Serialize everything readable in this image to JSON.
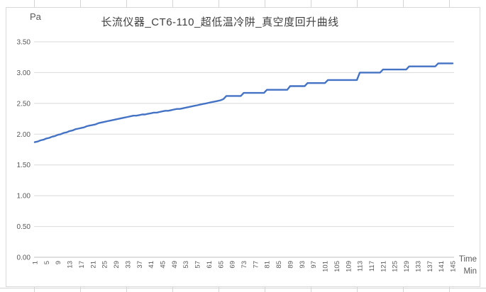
{
  "chart": {
    "title": "长流仪器_CT6-110_超低温冷阱_真空度回升曲线",
    "y_unit": "Pa",
    "x_axis_title": {
      "line1": "Time",
      "line2": "Min"
    },
    "colors": {
      "series_line": "#4472C4",
      "gridline": "#d9d9d9",
      "axis_line": "#bfbfbf",
      "tick_label": "#595959",
      "title_text": "#404040"
    }
  },
  "chart_data": {
    "type": "line",
    "title": "长流仪器_CT6-110_超低温冷阱_真空度回升曲线",
    "xlabel": "Time Min",
    "ylabel": "Pa",
    "ylim": [
      0,
      3.5
    ],
    "y_ticks": [
      "3.50",
      "3.00",
      "2.50",
      "2.00",
      "1.50",
      "1.00",
      "0.50",
      "0.00"
    ],
    "x_ticks": [
      1,
      5,
      9,
      13,
      17,
      21,
      25,
      29,
      33,
      37,
      41,
      45,
      49,
      53,
      57,
      61,
      65,
      69,
      73,
      77,
      81,
      85,
      89,
      93,
      97,
      101,
      105,
      109,
      113,
      117,
      121,
      125,
      129,
      133,
      137,
      141,
      145
    ],
    "x_start": 1,
    "x_step": 1,
    "grid": true,
    "legend": false,
    "series": [
      {
        "name": "真空度回升曲线",
        "values": [
          1.87,
          1.88,
          1.9,
          1.91,
          1.93,
          1.94,
          1.96,
          1.97,
          1.99,
          2.0,
          2.02,
          2.03,
          2.05,
          2.06,
          2.08,
          2.09,
          2.1,
          2.11,
          2.13,
          2.14,
          2.15,
          2.16,
          2.18,
          2.19,
          2.2,
          2.21,
          2.22,
          2.23,
          2.24,
          2.25,
          2.26,
          2.27,
          2.28,
          2.29,
          2.3,
          2.3,
          2.31,
          2.32,
          2.32,
          2.33,
          2.34,
          2.35,
          2.35,
          2.36,
          2.37,
          2.38,
          2.38,
          2.39,
          2.4,
          2.41,
          2.41,
          2.42,
          2.43,
          2.44,
          2.45,
          2.46,
          2.47,
          2.48,
          2.49,
          2.5,
          2.51,
          2.52,
          2.53,
          2.54,
          2.55,
          2.57,
          2.62,
          2.62,
          2.62,
          2.62,
          2.62,
          2.62,
          2.67,
          2.67,
          2.67,
          2.67,
          2.67,
          2.67,
          2.67,
          2.67,
          2.72,
          2.72,
          2.72,
          2.72,
          2.72,
          2.72,
          2.72,
          2.72,
          2.78,
          2.78,
          2.78,
          2.78,
          2.78,
          2.78,
          2.83,
          2.83,
          2.83,
          2.83,
          2.83,
          2.83,
          2.83,
          2.88,
          2.88,
          2.88,
          2.88,
          2.88,
          2.88,
          2.88,
          2.88,
          2.88,
          2.88,
          2.88,
          3.0,
          3.0,
          3.0,
          3.0,
          3.0,
          3.0,
          3.0,
          3.0,
          3.05,
          3.05,
          3.05,
          3.05,
          3.05,
          3.05,
          3.05,
          3.05,
          3.05,
          3.1,
          3.1,
          3.1,
          3.1,
          3.1,
          3.1,
          3.1,
          3.1,
          3.1,
          3.1,
          3.15,
          3.15,
          3.15,
          3.15,
          3.15,
          3.15
        ]
      }
    ]
  }
}
